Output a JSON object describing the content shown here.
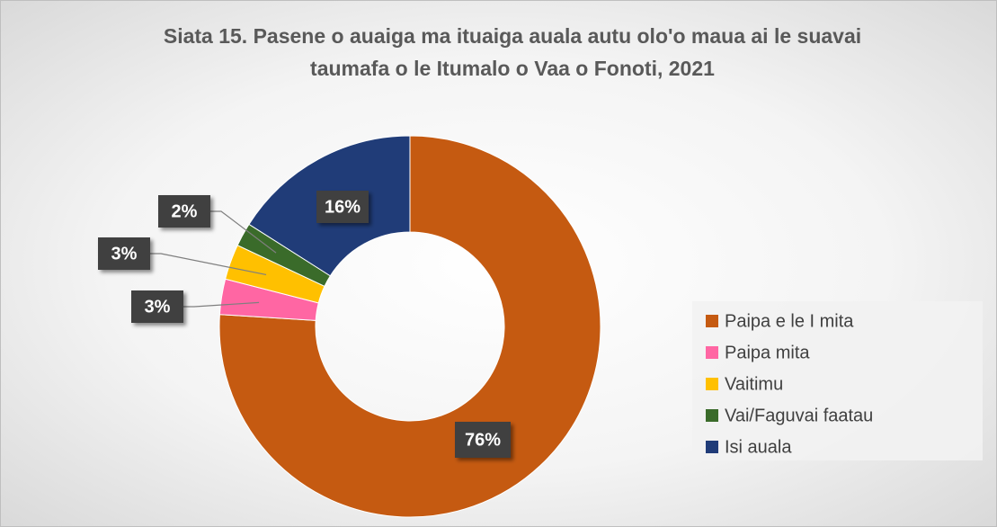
{
  "chart_data": {
    "type": "donut",
    "title": "Siata 15. Pasene o auaiga ma ituaiga auala autu olo'o maua ai le suavai taumafa o le Itumalo o Vaa o Fonoti, 2021",
    "categories": [
      "Paipa e le I mita",
      "Paipa mita",
      "Vaitimu",
      "Vai/Faguvai faatau",
      "Isi auala"
    ],
    "values": [
      76,
      3,
      3,
      2,
      16
    ],
    "value_labels": [
      "76%",
      "3%",
      "3%",
      "2%",
      "16%"
    ],
    "colors": [
      "#c55a11",
      "#ff66a3",
      "#ffc000",
      "#3a6b2a",
      "#203c78"
    ],
    "legend": "right"
  }
}
